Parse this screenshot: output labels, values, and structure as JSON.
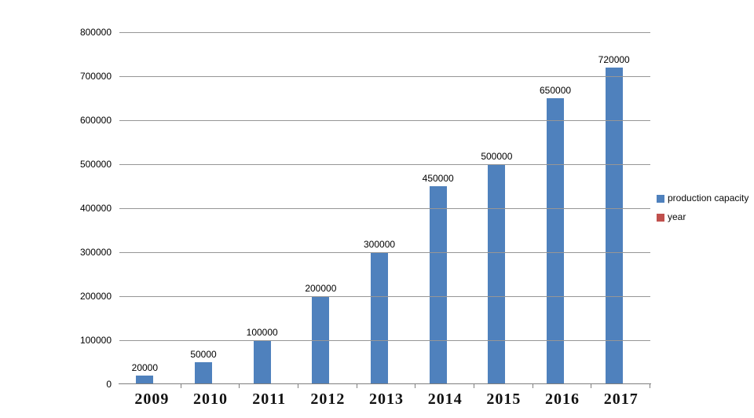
{
  "chart_data": {
    "type": "bar",
    "title": "",
    "categories": [
      "2009",
      "2010",
      "2011",
      "2012",
      "2013",
      "2014",
      "2015",
      "2016",
      "2017"
    ],
    "series": [
      {
        "name": "production capacity",
        "color": "#4F81BD",
        "values": [
          20000,
          50000,
          100000,
          200000,
          300000,
          450000,
          500000,
          650000,
          720000
        ]
      },
      {
        "name": "year",
        "color": "#C0504D",
        "values": []
      }
    ],
    "xlabel": "",
    "ylabel": "",
    "ylim": [
      0,
      800000
    ],
    "y_tick_interval": 100000,
    "y_tick_labels": [
      "0",
      "100000",
      "200000",
      "300000",
      "400000",
      "500000",
      "600000",
      "700000",
      "800000"
    ],
    "grid": "horizontal-only",
    "legend_position": "right",
    "data_labels": "above-bars"
  },
  "colors": {
    "background": "#FFFFFF",
    "bar": "#4F81BD",
    "legend_year_swatch": "#C0504D",
    "gridline": "#969696",
    "axis": "#7F7F7F",
    "text": "#000000"
  }
}
